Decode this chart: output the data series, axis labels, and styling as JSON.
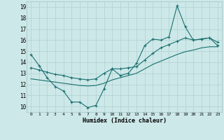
{
  "xlabel": "Humidex (Indice chaleur)",
  "xlim": [
    -0.5,
    23.5
  ],
  "ylim": [
    9.5,
    19.5
  ],
  "xticks": [
    0,
    1,
    2,
    3,
    4,
    5,
    6,
    7,
    8,
    9,
    10,
    11,
    12,
    13,
    14,
    15,
    16,
    17,
    18,
    19,
    20,
    21,
    22,
    23
  ],
  "yticks": [
    10,
    11,
    12,
    13,
    14,
    15,
    16,
    17,
    18,
    19
  ],
  "bg_color": "#cde8e8",
  "line_color": "#1a7070",
  "grid_color": "#b0d0d0",
  "line1_x": [
    0,
    1,
    2,
    3,
    4,
    5,
    6,
    7,
    8,
    9,
    10,
    11,
    12,
    13,
    14,
    15,
    16,
    17,
    18,
    19,
    20,
    21,
    22,
    23
  ],
  "line1_y": [
    14.7,
    13.7,
    12.6,
    11.8,
    11.4,
    10.4,
    10.4,
    9.9,
    10.1,
    11.6,
    13.4,
    12.8,
    13.0,
    13.9,
    15.5,
    16.1,
    16.0,
    16.3,
    19.1,
    17.2,
    16.0,
    16.1,
    16.2,
    15.5
  ],
  "line2_x": [
    0,
    1,
    2,
    3,
    4,
    5,
    6,
    7,
    8,
    9,
    10,
    11,
    12,
    13,
    14,
    15,
    16,
    17,
    18,
    19,
    20,
    21,
    22,
    23
  ],
  "line2_y": [
    13.5,
    13.3,
    13.1,
    12.9,
    12.8,
    12.6,
    12.5,
    12.4,
    12.5,
    13.0,
    13.4,
    13.4,
    13.5,
    13.6,
    14.2,
    14.8,
    15.3,
    15.6,
    15.9,
    16.2,
    16.0,
    16.1,
    16.2,
    15.8
  ],
  "line3_x": [
    0,
    1,
    2,
    3,
    4,
    5,
    6,
    7,
    8,
    9,
    10,
    11,
    12,
    13,
    14,
    15,
    16,
    17,
    18,
    19,
    20,
    21,
    22,
    23
  ],
  "line3_y": [
    12.5,
    12.4,
    12.3,
    12.2,
    12.1,
    12.0,
    11.9,
    11.85,
    11.9,
    12.1,
    12.4,
    12.6,
    12.8,
    13.0,
    13.4,
    13.8,
    14.1,
    14.4,
    14.7,
    14.95,
    15.1,
    15.3,
    15.4,
    15.4
  ]
}
